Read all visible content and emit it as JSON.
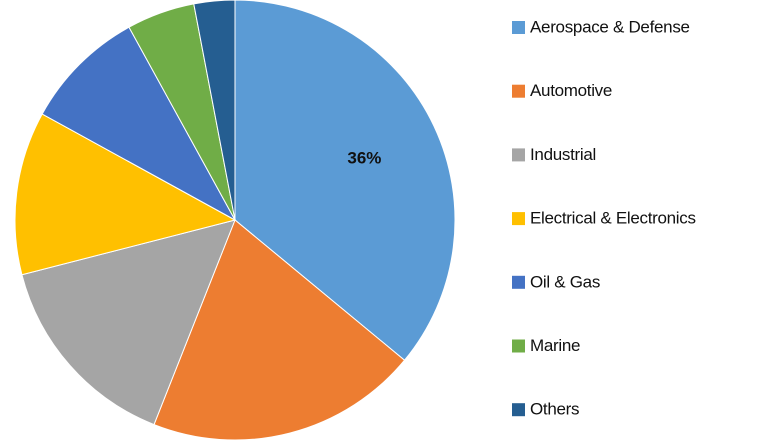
{
  "chart_data": {
    "type": "pie",
    "categories": [
      "Aerospace & Defense",
      "Automotive",
      "Industrial",
      "Electrical & Electronics",
      "Oil & Gas",
      "Marine",
      "Others"
    ],
    "values": [
      36,
      20,
      15,
      12,
      9,
      5,
      3
    ],
    "value_labels": [
      "36%",
      null,
      null,
      null,
      null,
      null,
      null
    ],
    "colors": [
      "#5b9bd5",
      "#ed7d31",
      "#a5a5a5",
      "#ffc000",
      "#4472c4",
      "#70ad47",
      "#255e91"
    ],
    "legend": "right"
  }
}
